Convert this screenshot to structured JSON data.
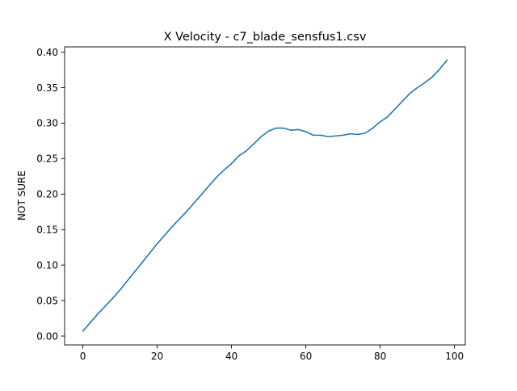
{
  "figure": {
    "title": "X Velocity - c7_blade_sensfus1.csv",
    "ylabel": "NOT SURE"
  },
  "chart_data": {
    "type": "line",
    "title": "X Velocity - c7_blade_sensfus1.csv",
    "xlabel": "",
    "ylabel": "NOT SURE",
    "xlim": [
      -4.9,
      102.9
    ],
    "ylim": [
      -0.0125,
      0.4075
    ],
    "xticks": [
      0,
      20,
      40,
      60,
      80,
      100
    ],
    "xtick_labels": [
      "0",
      "20",
      "40",
      "60",
      "80",
      "100"
    ],
    "yticks": [
      0.0,
      0.05,
      0.1,
      0.15,
      0.2,
      0.25,
      0.3,
      0.35,
      0.4
    ],
    "ytick_labels": [
      "0.00",
      "0.05",
      "0.10",
      "0.15",
      "0.20",
      "0.25",
      "0.30",
      "0.35",
      "0.40"
    ],
    "grid": false,
    "legend": "none",
    "series": [
      {
        "color": "#1f77b4",
        "x": [
          0,
          2,
          4,
          6,
          8,
          10,
          12,
          14,
          16,
          18,
          20,
          22,
          24,
          26,
          28,
          30,
          32,
          34,
          36,
          38,
          40,
          42,
          44,
          46,
          48,
          50,
          52,
          54,
          56,
          58,
          60,
          62,
          64,
          66,
          68,
          70,
          72,
          74,
          76,
          78,
          80,
          82,
          84,
          86,
          88,
          90,
          92,
          94,
          96,
          98
        ],
        "y": [
          0.007,
          0.019,
          0.031,
          0.042,
          0.053,
          0.065,
          0.078,
          0.091,
          0.104,
          0.117,
          0.13,
          0.142,
          0.154,
          0.165,
          0.176,
          0.188,
          0.2,
          0.212,
          0.224,
          0.234,
          0.243,
          0.254,
          0.261,
          0.271,
          0.281,
          0.289,
          0.293,
          0.293,
          0.29,
          0.291,
          0.288,
          0.283,
          0.283,
          0.281,
          0.282,
          0.283,
          0.285,
          0.284,
          0.286,
          0.293,
          0.302,
          0.309,
          0.32,
          0.331,
          0.342,
          0.35,
          0.357,
          0.365,
          0.376,
          0.389
        ]
      }
    ]
  }
}
